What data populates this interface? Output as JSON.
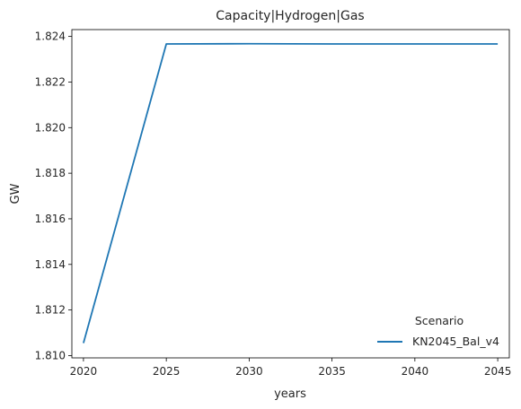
{
  "chart_data": {
    "type": "line",
    "title": "Capacity|Hydrogen|Gas",
    "xlabel": "years",
    "ylabel": "GW",
    "x": [
      2020,
      2025,
      2030,
      2035,
      2040,
      2045
    ],
    "series": [
      {
        "name": "KN2045_Bal_v4",
        "color": "#1f77b4",
        "values": [
          1.81055,
          1.82367,
          1.82368,
          1.82367,
          1.82367,
          1.82367
        ]
      }
    ],
    "xlim": [
      2019.3,
      2045.7
    ],
    "ylim": [
      1.8099,
      1.8243
    ],
    "xticks": [
      2020,
      2025,
      2030,
      2035,
      2040,
      2045
    ],
    "yticks": [
      1.81,
      1.812,
      1.814,
      1.816,
      1.818,
      1.82,
      1.822,
      1.824
    ],
    "ytick_labels": [
      "1.810",
      "1.812",
      "1.814",
      "1.816",
      "1.818",
      "1.820",
      "1.822",
      "1.824"
    ],
    "grid": false,
    "legend": {
      "title": "Scenario",
      "placement": "lower-right"
    }
  }
}
